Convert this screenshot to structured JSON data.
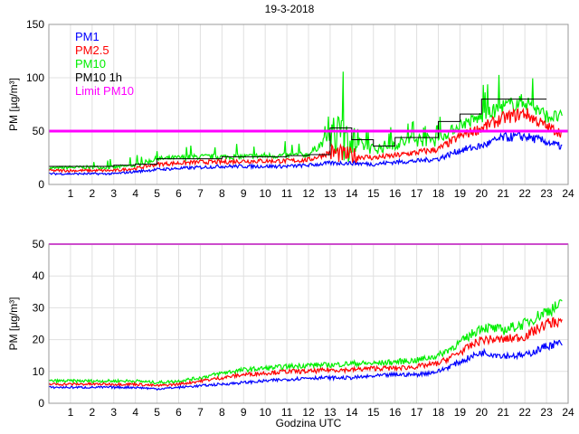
{
  "title": "19-3-2018",
  "colors": {
    "pm1": "#0000ff",
    "pm25": "#ff0000",
    "pm10": "#00ee00",
    "pm10_1h": "#000000",
    "limit": "#ff00ff"
  },
  "chart_data": [
    {
      "type": "line",
      "title": "19-3-2018",
      "xlabel": "",
      "ylabel": "PM [µg/m³]",
      "xlim": [
        0,
        24
      ],
      "ylim": [
        0,
        150
      ],
      "xticks": [
        1,
        2,
        3,
        4,
        5,
        6,
        7,
        8,
        9,
        10,
        11,
        12,
        13,
        14,
        15,
        16,
        17,
        18,
        19,
        20,
        21,
        22,
        23,
        24
      ],
      "yticks": [
        0,
        50,
        100,
        150
      ],
      "grid": true,
      "legend": {
        "placement": "top-left",
        "entries": [
          "PM1",
          "PM2.5",
          "PM10",
          "PM10 1h",
          "Limit PM10"
        ]
      },
      "x": [
        0,
        1,
        2,
        3,
        4,
        5,
        6,
        7,
        8,
        9,
        10,
        11,
        12,
        13,
        14,
        15,
        16,
        17,
        18,
        19,
        20,
        21,
        22,
        23,
        23.75
      ],
      "series": [
        {
          "name": "PM1",
          "color": "#0000ff",
          "values": [
            10,
            10,
            10,
            10,
            12,
            14,
            15,
            16,
            17,
            17,
            17,
            17,
            18,
            20,
            20,
            19,
            21,
            22,
            24,
            32,
            36,
            44,
            45,
            40,
            35
          ]
        },
        {
          "name": "PM2.5",
          "color": "#ff0000",
          "values": [
            13,
            13,
            13,
            13,
            15,
            19,
            20,
            21,
            21,
            22,
            22,
            22,
            23,
            30,
            27,
            25,
            27,
            30,
            33,
            45,
            53,
            62,
            67,
            54,
            48
          ]
        },
        {
          "name": "PM10",
          "color": "#00ee00",
          "values": [
            15,
            16,
            16,
            16,
            18,
            24,
            25,
            26,
            26,
            26,
            27,
            27,
            28,
            45,
            40,
            33,
            38,
            42,
            42,
            56,
            63,
            73,
            78,
            64,
            63
          ]
        }
      ],
      "pm10_1h": {
        "name": "PM10 1h",
        "hours": [
          0,
          1,
          2,
          3,
          4,
          5,
          6,
          7,
          8,
          9,
          10,
          11,
          12,
          13,
          14,
          15,
          16,
          17,
          18,
          19,
          20,
          21,
          22
        ],
        "values": [
          17,
          17,
          17,
          18,
          19,
          24,
          24,
          24,
          26,
          26,
          26,
          27,
          28,
          53,
          42,
          36,
          44,
          44,
          59,
          66,
          80,
          80,
          80
        ]
      },
      "limit": {
        "name": "Limit PM10",
        "value": 50
      }
    },
    {
      "type": "line",
      "xlabel": "Godzina UTC",
      "ylabel": "PM [µg/m³]",
      "xlim": [
        0,
        24
      ],
      "ylim": [
        0,
        50
      ],
      "xticks": [
        1,
        2,
        3,
        4,
        5,
        6,
        7,
        8,
        9,
        10,
        11,
        12,
        13,
        14,
        15,
        16,
        17,
        18,
        19,
        20,
        21,
        22,
        23,
        24
      ],
      "yticks": [
        0,
        10,
        20,
        30,
        40,
        50
      ],
      "grid": true,
      "x": [
        0,
        1,
        2,
        3,
        4,
        5,
        6,
        7,
        8,
        9,
        10,
        11,
        12,
        13,
        14,
        15,
        16,
        17,
        18,
        19,
        20,
        21,
        22,
        23,
        23.75
      ],
      "series": [
        {
          "name": "PM1",
          "color": "#0000ff",
          "values": [
            5,
            5,
            5,
            5,
            5,
            4.5,
            5,
            5.5,
            6,
            6.5,
            7,
            7.5,
            8,
            8,
            8,
            8.5,
            9,
            9,
            10,
            13,
            16,
            15,
            15,
            18,
            19
          ]
        },
        {
          "name": "PM2.5",
          "color": "#ff0000",
          "values": [
            6,
            6,
            6,
            6,
            6,
            5.5,
            6,
            7,
            8,
            9,
            9.5,
            10,
            10,
            10.5,
            10.5,
            11,
            11,
            11.5,
            12.5,
            16,
            20,
            20,
            21,
            25,
            26
          ]
        },
        {
          "name": "PM10",
          "color": "#00ee00",
          "values": [
            7,
            7,
            7,
            7,
            7,
            6.5,
            7,
            8,
            9.5,
            10.5,
            11,
            11.5,
            12,
            12,
            12.5,
            12.5,
            13,
            13.5,
            15,
            19,
            24,
            23,
            25,
            29,
            31
          ]
        }
      ],
      "limit": {
        "name": "Limit PM10",
        "value": 50
      }
    }
  ]
}
